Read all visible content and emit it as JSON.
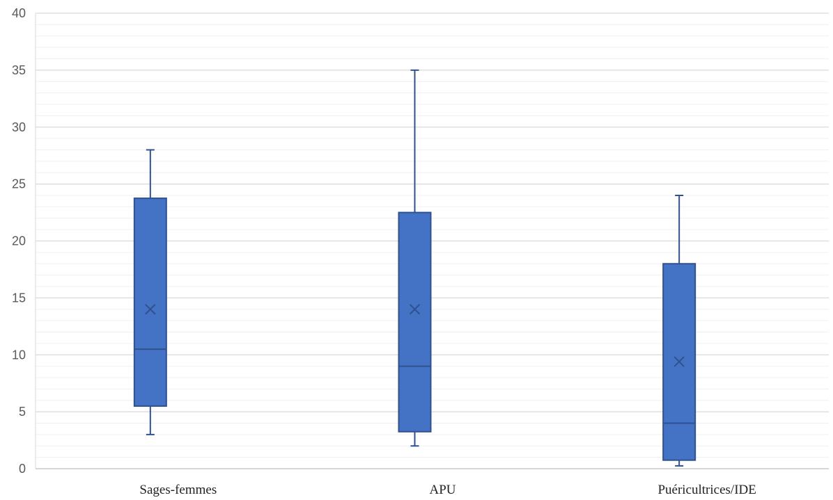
{
  "chart_data": {
    "type": "box",
    "categories": [
      "Sages-femmes",
      "APU",
      "Puéricultrices/IDE"
    ],
    "boxes": [
      {
        "category": "Sages-femmes",
        "min": 3,
        "q1": 5.5,
        "median": 10.5,
        "mean": 14,
        "q3": 23.75,
        "max": 28
      },
      {
        "category": "APU",
        "min": 2,
        "q1": 3.25,
        "median": 9,
        "mean": 14,
        "q3": 22.5,
        "max": 35
      },
      {
        "category": "Puéricultrices/IDE",
        "min": 0.25,
        "q1": 0.75,
        "median": 4,
        "mean": 9.4,
        "q3": 18,
        "max": 24
      }
    ],
    "ylim": [
      0,
      40
    ],
    "yticks": [
      "0",
      "5",
      "10",
      "15",
      "20",
      "25",
      "30",
      "35",
      "40"
    ],
    "ytick_values": [
      0,
      5,
      10,
      15,
      20,
      25,
      30,
      35,
      40
    ],
    "minor_grid_step": 1,
    "grid": true,
    "title": "",
    "xlabel": "",
    "ylabel": "",
    "colors": {
      "box_fill": "#4472C4",
      "box_stroke": "#2F528F",
      "major_grid": "#D9D9D9",
      "minor_grid": "#F0F0F0",
      "axis": "#BFBFBF"
    }
  }
}
